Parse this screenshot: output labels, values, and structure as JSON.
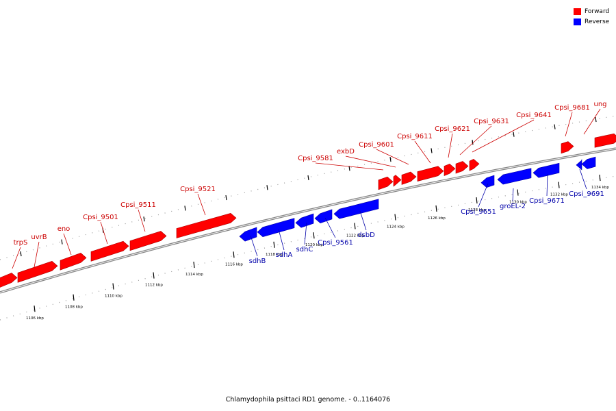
{
  "legend": {
    "forward_label": "Forward",
    "reverse_label": "Reverse",
    "forward_color": "#ff0000",
    "reverse_color": "#0000ff"
  },
  "caption": "Chlamydophila psittaci RD1 genome. - 0..1164076",
  "scale_ticks": [
    "1106 kbp",
    "1108 kbp",
    "1110 kbp",
    "1112 kbp",
    "1114 kbp",
    "1116 kbp",
    "1118 kbp",
    "1120 kbp",
    "1122 kbp",
    "1124 kbp",
    "1126 kbp",
    "1128 kbp",
    "1130 kbp",
    "1132 kbp",
    "1134 kbp"
  ],
  "genes_forward": [
    "trpS",
    "uvrB",
    "eno",
    "Cpsi_9501",
    "Cpsi_9511",
    "Cpsi_9521",
    "Cpsi_9581",
    "exbD",
    "Cpsi_9601",
    "Cpsi_9611",
    "Cpsi_9621",
    "Cpsi_9631",
    "Cpsi_9641",
    "Cpsi_9681",
    "ung"
  ],
  "genes_reverse": [
    "sdhB",
    "sdhA",
    "sdhC",
    "Cpsi_9561",
    "dsbD",
    "Cpsi_9651",
    "groEL-2",
    "Cpsi_9671",
    "Cpsi_9691"
  ],
  "label_colors": {
    "forward": "#cc0000",
    "reverse": "#0000aa"
  }
}
